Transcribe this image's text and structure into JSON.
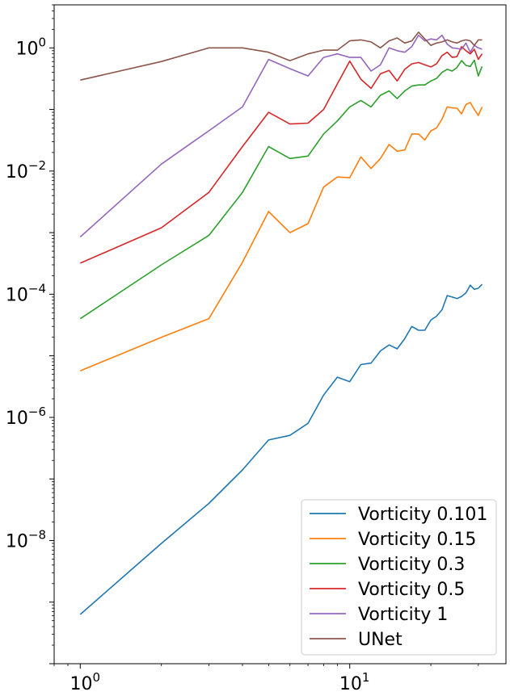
{
  "chart_data": {
    "type": "line",
    "title": "",
    "xlabel": "",
    "ylabel": "",
    "xscale": "log",
    "yscale": "log",
    "xlim": [
      0.8,
      38
    ],
    "ylim": [
      1e-10,
      5
    ],
    "legend_position": "lower-right",
    "x_ticks": [
      {
        "value": 1,
        "base": "10",
        "exp": "0"
      },
      {
        "value": 10,
        "base": "10",
        "exp": "1"
      }
    ],
    "y_ticks": [
      {
        "value": 1e-08,
        "base": "10",
        "exp": "−8"
      },
      {
        "value": 1e-06,
        "base": "10",
        "exp": "−6"
      },
      {
        "value": 0.0001,
        "base": "10",
        "exp": "−4"
      },
      {
        "value": 0.01,
        "base": "10",
        "exp": "−2"
      },
      {
        "value": 1,
        "base": "10",
        "exp": "0"
      }
    ],
    "x": [
      1,
      2,
      3,
      4,
      5,
      6,
      7,
      8,
      9,
      10,
      11,
      12,
      13,
      14,
      15,
      16,
      17,
      18,
      19,
      20,
      21,
      22,
      23,
      24,
      25,
      26,
      27,
      28,
      29,
      30,
      31
    ],
    "series": [
      {
        "name": "Vorticity 0.101",
        "color": "#1f77b4",
        "values": [
          6.3e-10,
          9e-09,
          4e-08,
          1.4e-07,
          4.3e-07,
          5.1e-07,
          8e-07,
          2.3e-06,
          4.5e-06,
          3.8e-06,
          7.2e-06,
          7.6e-06,
          1.2e-05,
          1.5e-05,
          1.3e-05,
          1.9e-05,
          3e-05,
          2.6e-05,
          2.6e-05,
          3.8e-05,
          4.4e-05,
          5.6e-05,
          9.5e-05,
          9e-05,
          8.5e-05,
          9.2e-05,
          0.000105,
          0.00014,
          0.00012,
          0.000125,
          0.000145
        ]
      },
      {
        "name": "Vorticity 0.15",
        "color": "#ff7f0e",
        "values": [
          5.7e-06,
          2e-05,
          4e-05,
          0.00033,
          0.0022,
          0.001,
          0.0014,
          0.0055,
          0.008,
          0.0078,
          0.017,
          0.011,
          0.016,
          0.027,
          0.021,
          0.022,
          0.04,
          0.04,
          0.032,
          0.045,
          0.05,
          0.07,
          0.11,
          0.106,
          0.105,
          0.085,
          0.12,
          0.13,
          0.1,
          0.08,
          0.11
        ]
      },
      {
        "name": "Vorticity 0.3",
        "color": "#2ca02c",
        "values": [
          4e-05,
          0.0003,
          0.0009,
          0.0045,
          0.025,
          0.016,
          0.0175,
          0.04,
          0.065,
          0.11,
          0.14,
          0.11,
          0.17,
          0.2,
          0.15,
          0.2,
          0.24,
          0.25,
          0.25,
          0.29,
          0.32,
          0.4,
          0.45,
          0.42,
          0.48,
          0.62,
          0.52,
          0.5,
          0.63,
          0.35,
          0.5
        ]
      },
      {
        "name": "Vorticity 0.5",
        "color": "#d62728",
        "values": [
          0.00032,
          0.0012,
          0.0045,
          0.025,
          0.09,
          0.058,
          0.06,
          0.1,
          0.26,
          0.61,
          0.31,
          0.22,
          0.38,
          0.43,
          0.29,
          0.45,
          0.55,
          0.58,
          0.53,
          0.49,
          0.55,
          0.75,
          0.85,
          0.7,
          0.72,
          1.05,
          0.9,
          0.8,
          0.95,
          0.65,
          0.8
        ]
      },
      {
        "name": "Vorticity 1",
        "color": "#9467bd",
        "values": [
          0.00085,
          0.013,
          0.045,
          0.11,
          0.65,
          0.46,
          0.35,
          0.7,
          0.8,
          0.7,
          0.7,
          0.42,
          0.53,
          1.0,
          0.9,
          0.85,
          1.05,
          1.6,
          1.3,
          1.4,
          1.35,
          1.6,
          1.15,
          1.0,
          0.98,
          0.95,
          1.2,
          0.85,
          1.1,
          1.0,
          0.95
        ]
      },
      {
        "name": "UNet",
        "color": "#8c564b",
        "values": [
          0.3,
          0.6,
          1.0,
          1.0,
          0.85,
          0.62,
          0.8,
          0.92,
          0.92,
          1.3,
          1.35,
          1.25,
          1.0,
          1.3,
          1.45,
          1.2,
          1.3,
          1.8,
          1.4,
          1.1,
          1.2,
          1.25,
          1.35,
          1.25,
          1.2,
          1.3,
          1.35,
          1.3,
          1.1,
          1.35,
          1.35
        ]
      }
    ]
  }
}
